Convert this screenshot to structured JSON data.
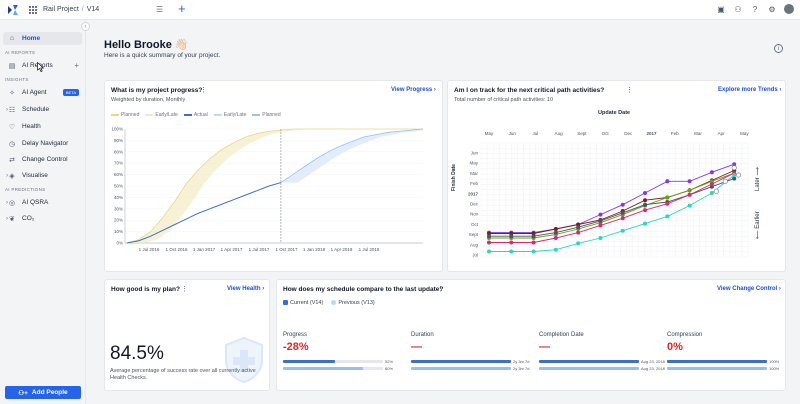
{
  "topbar": {
    "project": "Rail Project",
    "separator": "/",
    "version": "V14"
  },
  "sidebar": {
    "home": "Home",
    "section_reports": "AI REPORTS",
    "ai_reports": "AI Reports",
    "section_insights": "INSIGHTS",
    "ai_agent": "AI Agent",
    "beta": "BETA",
    "schedule": "Schedule",
    "health": "Health",
    "delay_navigator": "Delay Navigator",
    "change_control": "Change Control",
    "visualise": "Visualise",
    "section_predictions": "AI PREDICTIONS",
    "ai_qsra": "AI QSRA",
    "co2": "CO₂",
    "add_people": "Add People"
  },
  "greeting": {
    "title": "Hello Brooke 👋🏻",
    "subtitle": "Here is a quick summary of your project."
  },
  "progress_card": {
    "title": "What is my project progress?",
    "subtitle": "Weighted by duration, Monthly",
    "link": "View Progress",
    "legend": [
      "Planned",
      "Early/Late",
      "Actual",
      "Early/Late",
      "Planned"
    ]
  },
  "critical_card": {
    "title": "Am I on track for the next critical path activities?",
    "subtitle": "Total number of critical path activities: 10",
    "link": "Explore more Trends",
    "update_label": "Update Date",
    "y_label": "Finish Date",
    "later": "Later",
    "earlier": "Earlier"
  },
  "plan_card": {
    "title": "How good is my plan?",
    "link": "View Health",
    "value": "84.5%",
    "description": "Average percentage of success rate over all currently active Health Checks."
  },
  "compare_card": {
    "title": "How does my schedule compare to the last update?",
    "link": "View Change Control",
    "current": "Current (V14)",
    "previous": "Previous (V13)",
    "metrics": [
      {
        "label": "Progress",
        "value": "-28%",
        "bar1_label": "52%",
        "bar2_label": "80%",
        "bar1": 0.52,
        "bar2": 0.8
      },
      {
        "label": "Duration",
        "value": "—",
        "bar1_label": "2y 3m 7d",
        "bar2_label": "2y 3m 7d",
        "bar1": 1.0,
        "bar2": 1.0
      },
      {
        "label": "Completion Date",
        "value": "—",
        "bar1_label": "Aug 23, 2018",
        "bar2_label": "Aug 23, 2018",
        "bar1": 1.0,
        "bar2": 1.0
      },
      {
        "label": "Compression",
        "value": "0%",
        "bar1_label": "100%",
        "bar2_label": "100%",
        "bar1": 1.0,
        "bar2": 1.0
      }
    ]
  },
  "chart_data": [
    {
      "type": "line",
      "title": "What is my project progress?",
      "x_ticks": [
        "1 Jul 2016",
        "1 Oct 2016",
        "1 Jan 2017",
        "1 Apr 2017",
        "1 Jul 2017",
        "1 Oct 2017",
        "1 Jan 2018",
        "1 Apr 2018",
        "1 Jul 2018"
      ],
      "y_ticks": [
        "0%",
        "10%",
        "20%",
        "30%",
        "40%",
        "50%",
        "60%",
        "70%",
        "80%",
        "90%",
        "100%"
      ],
      "ylim": [
        0,
        100
      ],
      "series": [
        {
          "name": "Planned",
          "color": "#e6d88a",
          "values": [
            0,
            3,
            10,
            22,
            36,
            52,
            64,
            74,
            82,
            88,
            93,
            96,
            98,
            99,
            100,
            100,
            100,
            100,
            100,
            100,
            100,
            100,
            100,
            100,
            100,
            100
          ]
        },
        {
          "name": "Actual",
          "color": "#3b6fc9",
          "values": [
            0,
            2,
            6,
            11,
            16,
            21,
            26,
            30,
            34,
            38,
            42,
            46,
            50,
            53
          ]
        },
        {
          "name": "Planned",
          "color": "#9cc0ea",
          "values": [
            null,
            null,
            null,
            null,
            null,
            null,
            null,
            null,
            null,
            null,
            null,
            null,
            null,
            53,
            60,
            67,
            74,
            80,
            85,
            89,
            93,
            95,
            97,
            98,
            99,
            100
          ]
        }
      ]
    },
    {
      "type": "line",
      "title": "Am I on track for the next critical path activities?",
      "x_ticks": [
        "May",
        "Jun",
        "Jul",
        "Aug",
        "Sept",
        "Oct",
        "Dec",
        "2017",
        "Feb",
        "Mar",
        "Apr",
        "May"
      ],
      "y_ticks": [
        "Jun",
        "May",
        "Mar",
        "Feb",
        "2017",
        "Dec",
        "Nov",
        "Oct",
        "Sept",
        "Aug",
        "Jul"
      ],
      "xlabel": "Update Date",
      "ylabel": "Finish Date",
      "series": [
        {
          "color": "#7c3aed",
          "values": [
            1.6,
            1.6,
            1.6,
            2.0,
            2.5,
            3.6,
            4.7,
            6.0,
            7.3,
            7.3,
            8.3,
            9.2
          ]
        },
        {
          "color": "#7f1d1d",
          "values": [
            1.5,
            1.5,
            1.5,
            2.0,
            2.5,
            3.0,
            4.0,
            5.2,
            5.5,
            6.3,
            7.4,
            8.5
          ]
        },
        {
          "color": "#65a30d",
          "values": [
            1.0,
            1.0,
            1.0,
            1.4,
            2.0,
            2.7,
            3.6,
            4.6,
            5.5,
            6.3,
            7.3,
            8.2
          ]
        },
        {
          "color": "#475569",
          "values": [
            1.2,
            1.2,
            1.2,
            1.6,
            2.2,
            2.9,
            3.8,
            4.7,
            5.0,
            5.8,
            6.7,
            7.6
          ]
        },
        {
          "color": "#db2777",
          "values": [
            0.5,
            0.5,
            0.5,
            1.0,
            1.6,
            2.4,
            3.2,
            4.1,
            4.8,
            5.8,
            7.0,
            8.2
          ]
        },
        {
          "color": "#2dd4bf",
          "values": [
            -0.5,
            -0.5,
            -0.5,
            -0.3,
            0.4,
            1.0,
            1.8,
            2.6,
            3.4,
            4.6,
            6.0,
            8.0
          ]
        }
      ]
    }
  ]
}
